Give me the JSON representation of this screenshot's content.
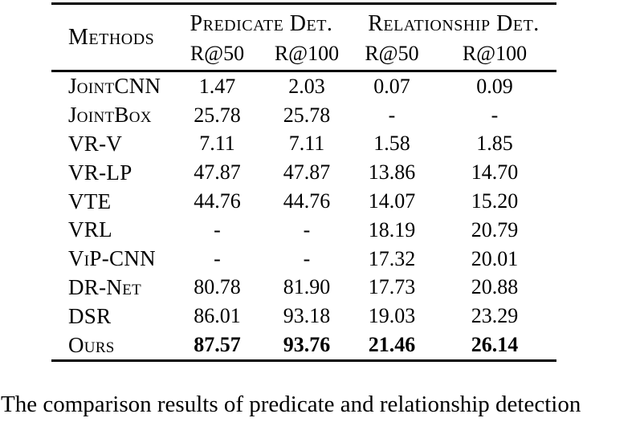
{
  "table": {
    "methods_header": "Methods",
    "group_headers": [
      {
        "label": "Predicate Det."
      },
      {
        "label": "Relationship Det."
      }
    ],
    "sub_headers": [
      "R@50",
      "R@100",
      "R@50",
      "R@100"
    ],
    "rows": [
      {
        "method": "JointCNN",
        "values": [
          "1.47",
          "2.03",
          "0.07",
          "0.09"
        ],
        "bold": false
      },
      {
        "method": "JointBox",
        "values": [
          "25.78",
          "25.78",
          "-",
          "-"
        ],
        "bold": false
      },
      {
        "method": "VR-V",
        "values": [
          "7.11",
          "7.11",
          "1.58",
          "1.85"
        ],
        "bold": false
      },
      {
        "method": "VR-LP",
        "values": [
          "47.87",
          "47.87",
          "13.86",
          "14.70"
        ],
        "bold": false
      },
      {
        "method": "VTE",
        "values": [
          "44.76",
          "44.76",
          "14.07",
          "15.20"
        ],
        "bold": false
      },
      {
        "method": "VRL",
        "values": [
          "-",
          "-",
          "18.19",
          "20.79"
        ],
        "bold": false
      },
      {
        "method": "ViP-CNN",
        "values": [
          "-",
          "-",
          "17.32",
          "20.01"
        ],
        "bold": false
      },
      {
        "method": "DR-Net",
        "values": [
          "80.78",
          "81.90",
          "17.73",
          "20.88"
        ],
        "bold": false
      },
      {
        "method": "DSR",
        "values": [
          "86.01",
          "93.18",
          "19.03",
          "23.29"
        ],
        "bold": false
      },
      {
        "method": "Ours",
        "values": [
          "87.57",
          "93.76",
          "21.46",
          "26.14"
        ],
        "bold": true
      }
    ]
  },
  "caption": "The comparison results of predicate and relationship detection",
  "colors": {
    "text": "#000000",
    "background": "#ffffff",
    "rule": "#000000"
  }
}
